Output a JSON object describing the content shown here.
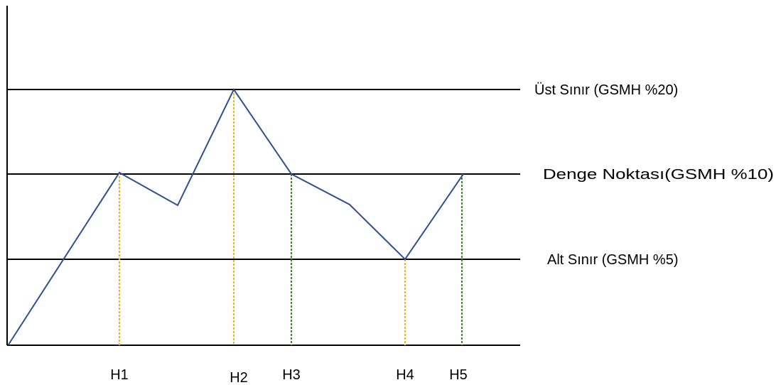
{
  "levels": [
    {
      "id": "upper",
      "label": "Üst Sınır (GSMH %20)"
    },
    {
      "id": "balance",
      "label": "Denge Noktası(GSMH %10)"
    },
    {
      "id": "lower",
      "label": "Alt Sınır (GSMH %5)"
    }
  ],
  "markers": [
    {
      "label": "H1",
      "line_color": "#f5b41a"
    },
    {
      "label": "H2",
      "line_color": "#f5b41a"
    },
    {
      "label": "H3",
      "line_color": "#3a8a2a"
    },
    {
      "label": "H4",
      "line_color": "#f5b41a"
    },
    {
      "label": "H5",
      "line_color": "#3a8a2a"
    }
  ],
  "colors": {
    "axis": "#000000",
    "level_lines": "#000000",
    "curve": "#2f4f8f"
  }
}
